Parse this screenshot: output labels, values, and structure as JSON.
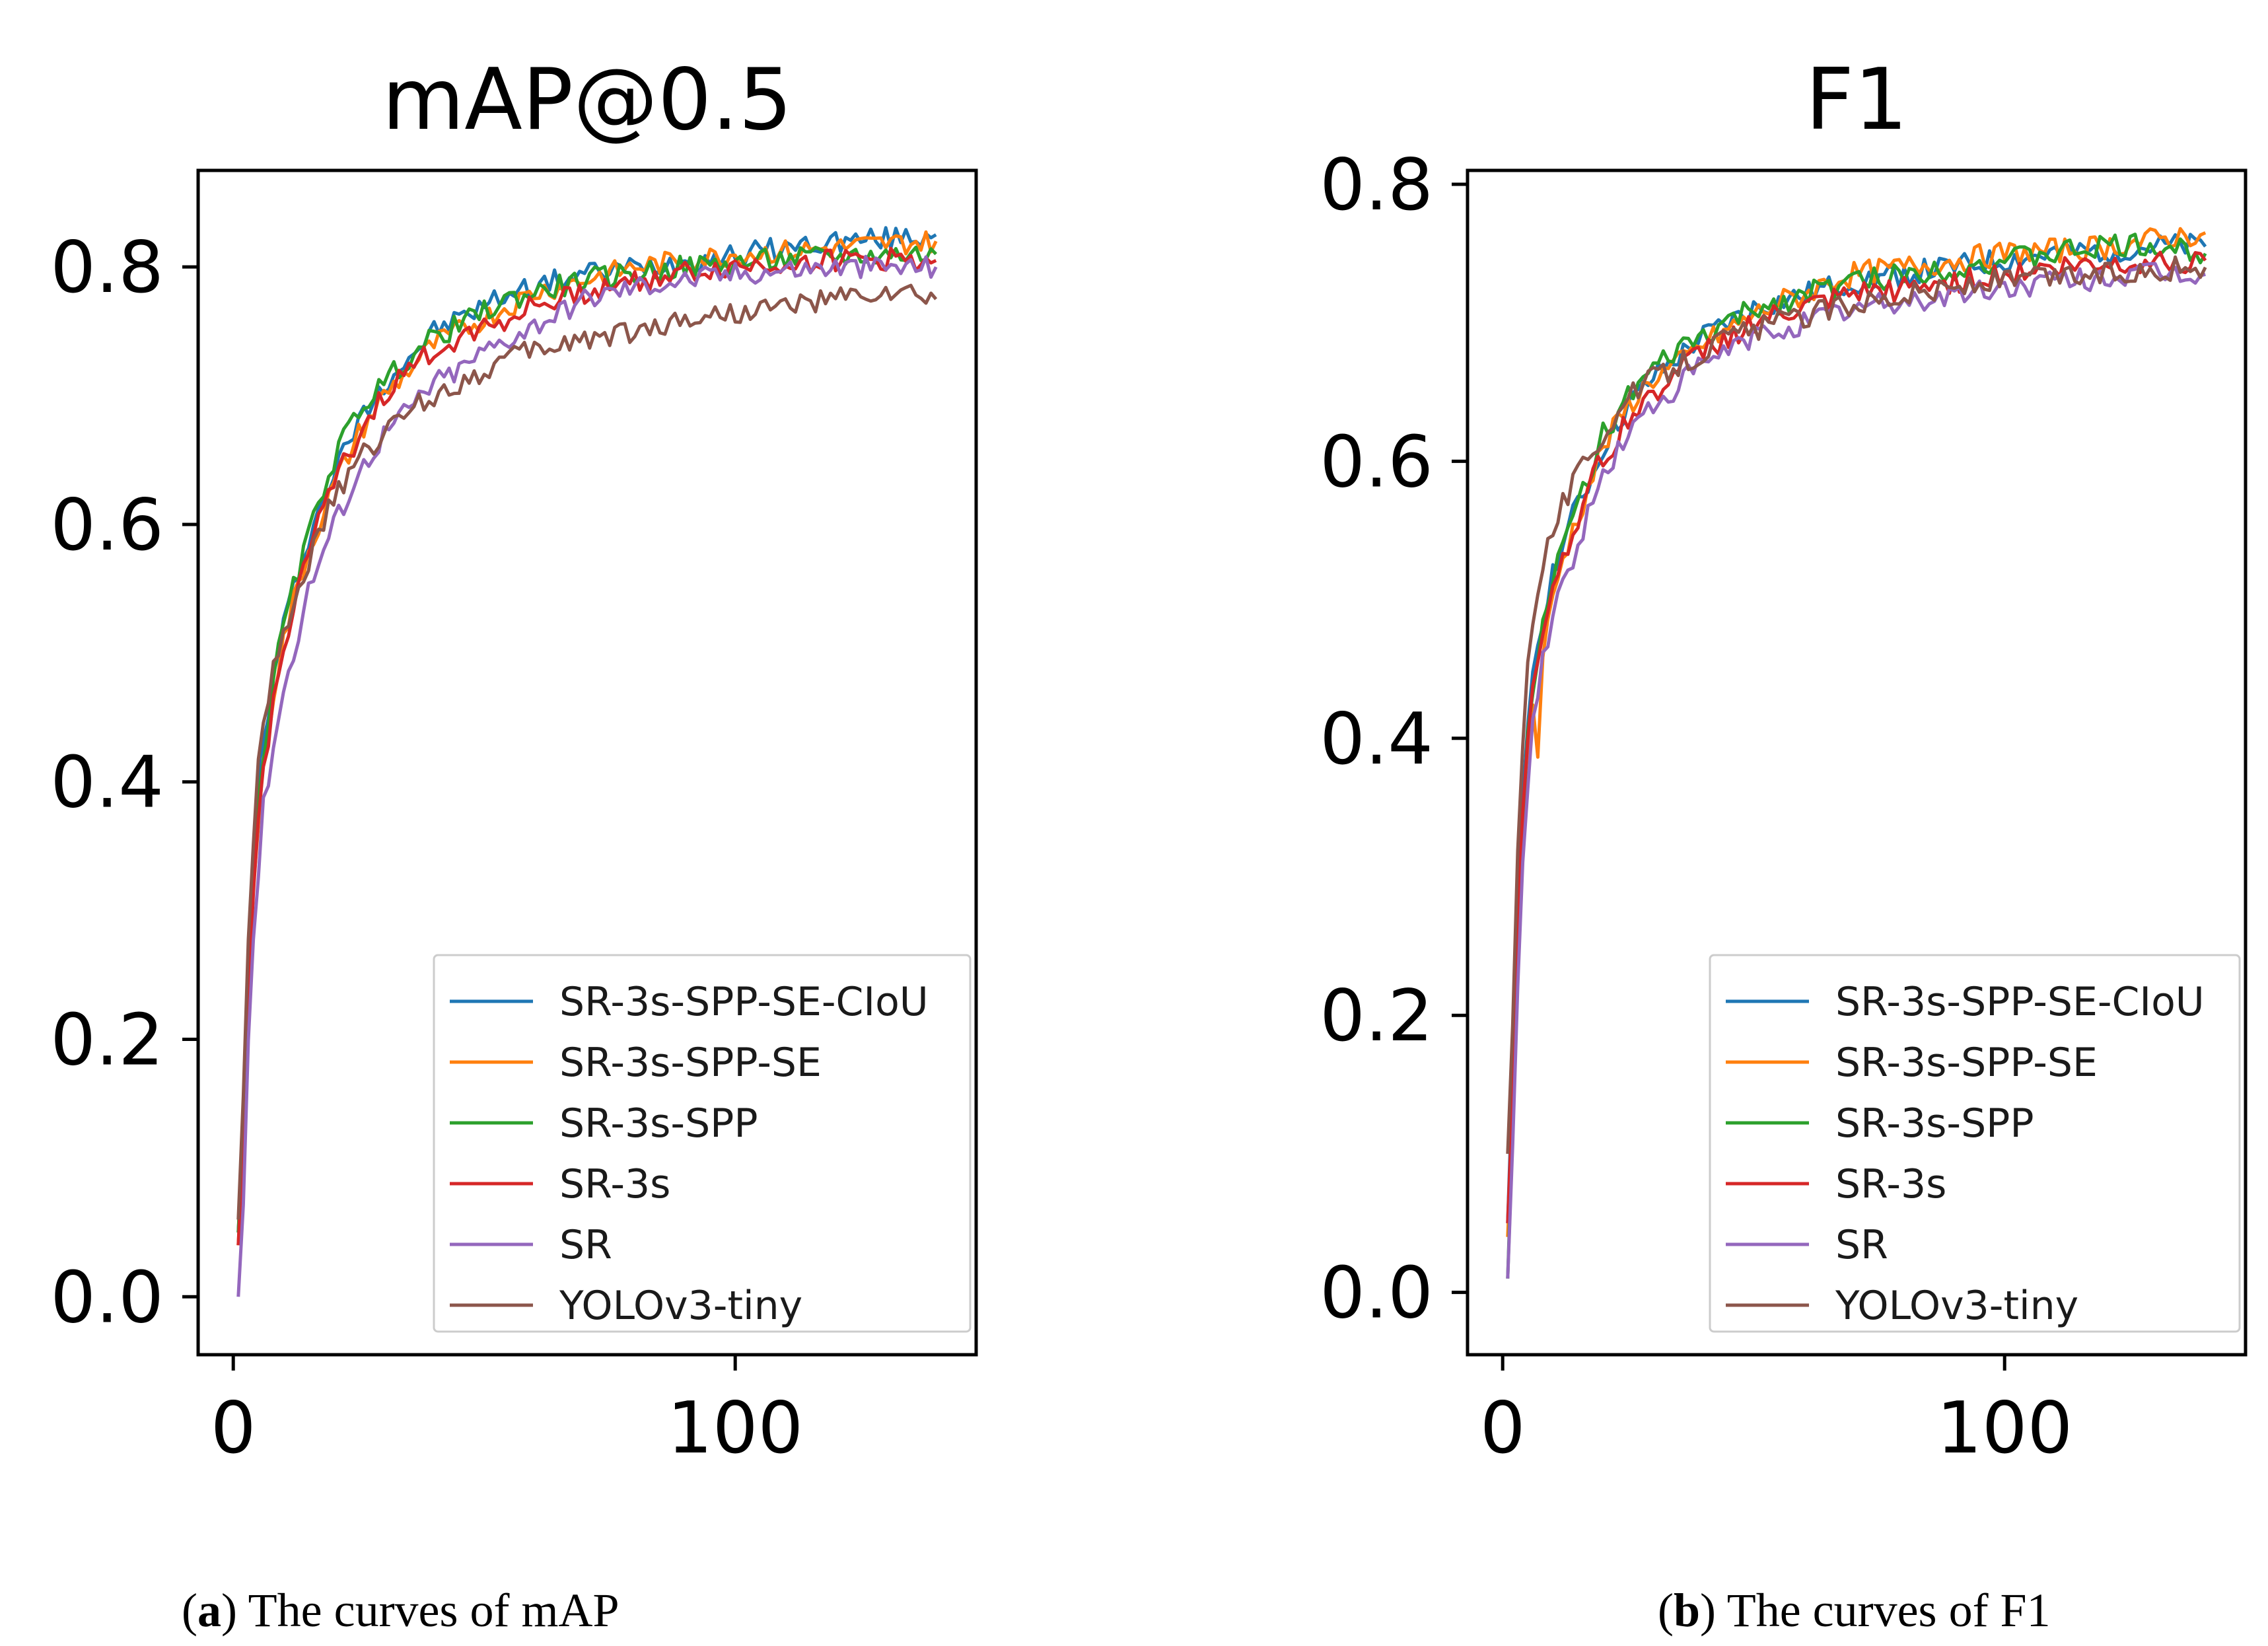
{
  "chart_data": [
    {
      "type": "line",
      "title": "mAP@0.5",
      "xlim": [
        -7,
        148
      ],
      "ylim": [
        -0.045,
        0.875
      ],
      "xticks": [
        0,
        100
      ],
      "xtick_labels": [
        "0",
        "100"
      ],
      "yticks": [
        0.0,
        0.2,
        0.4,
        0.6,
        0.8
      ],
      "ytick_labels": [
        "0.0",
        "0.2",
        "0.4",
        "0.6",
        "0.8"
      ],
      "legend_position": "lower-right",
      "series": [
        {
          "name": "SR-3s-SPP-SE-CIoU",
          "color": "#1f77b4",
          "x": [
            1,
            2,
            3,
            4,
            5,
            6,
            8,
            10,
            12,
            15,
            18,
            20,
            25,
            30,
            35,
            40,
            45,
            50,
            55,
            60,
            65,
            70,
            80,
            90,
            100,
            110,
            120,
            130,
            140
          ],
          "y": [
            0.05,
            0.14,
            0.26,
            0.34,
            0.39,
            0.43,
            0.48,
            0.52,
            0.55,
            0.59,
            0.62,
            0.64,
            0.68,
            0.71,
            0.73,
            0.75,
            0.76,
            0.77,
            0.78,
            0.785,
            0.79,
            0.795,
            0.8,
            0.805,
            0.81,
            0.815,
            0.82,
            0.822,
            0.825
          ]
        },
        {
          "name": "SR-3s-SPP-SE",
          "color": "#ff7f0e",
          "x": [
            1,
            2,
            3,
            4,
            5,
            6,
            8,
            10,
            12,
            15,
            18,
            20,
            25,
            30,
            35,
            40,
            45,
            50,
            55,
            60,
            65,
            70,
            80,
            90,
            100,
            110,
            120,
            130,
            140
          ],
          "y": [
            0.04,
            0.12,
            0.24,
            0.32,
            0.37,
            0.41,
            0.47,
            0.51,
            0.54,
            0.58,
            0.61,
            0.63,
            0.67,
            0.7,
            0.72,
            0.74,
            0.75,
            0.76,
            0.77,
            0.78,
            0.785,
            0.79,
            0.8,
            0.805,
            0.81,
            0.812,
            0.815,
            0.818,
            0.82
          ]
        },
        {
          "name": "SR-3s-SPP",
          "color": "#2ca02c",
          "x": [
            1,
            2,
            3,
            4,
            5,
            6,
            8,
            10,
            12,
            15,
            18,
            20,
            25,
            30,
            35,
            40,
            45,
            50,
            55,
            60,
            65,
            70,
            80,
            90,
            100,
            110,
            120,
            130,
            140
          ],
          "y": [
            0.05,
            0.13,
            0.25,
            0.33,
            0.38,
            0.42,
            0.48,
            0.52,
            0.55,
            0.59,
            0.63,
            0.65,
            0.69,
            0.71,
            0.73,
            0.745,
            0.755,
            0.765,
            0.775,
            0.78,
            0.785,
            0.79,
            0.795,
            0.8,
            0.803,
            0.806,
            0.808,
            0.81,
            0.81
          ]
        },
        {
          "name": "SR-3s",
          "color": "#d62728",
          "x": [
            1,
            2,
            3,
            4,
            5,
            6,
            8,
            10,
            12,
            15,
            18,
            20,
            25,
            30,
            35,
            40,
            45,
            50,
            55,
            60,
            65,
            70,
            80,
            90,
            100,
            110,
            120,
            130,
            140
          ],
          "y": [
            0.04,
            0.12,
            0.23,
            0.31,
            0.37,
            0.41,
            0.46,
            0.5,
            0.54,
            0.58,
            0.61,
            0.63,
            0.67,
            0.7,
            0.72,
            0.735,
            0.745,
            0.755,
            0.76,
            0.77,
            0.775,
            0.78,
            0.79,
            0.795,
            0.8,
            0.803,
            0.805,
            0.806,
            0.805
          ]
        },
        {
          "name": "SR",
          "color": "#9467bd",
          "x": [
            1,
            2,
            3,
            4,
            5,
            6,
            8,
            10,
            12,
            15,
            18,
            20,
            25,
            30,
            35,
            40,
            45,
            50,
            55,
            60,
            65,
            70,
            80,
            90,
            100,
            110,
            120,
            130,
            140
          ],
          "y": [
            0.0,
            0.08,
            0.2,
            0.28,
            0.33,
            0.38,
            0.43,
            0.47,
            0.5,
            0.55,
            0.58,
            0.6,
            0.64,
            0.67,
            0.69,
            0.71,
            0.72,
            0.735,
            0.745,
            0.755,
            0.765,
            0.775,
            0.785,
            0.79,
            0.795,
            0.798,
            0.8,
            0.8,
            0.8
          ]
        },
        {
          "name": "YOLOv3-tiny",
          "color": "#8c564b",
          "x": [
            1,
            2,
            3,
            4,
            5,
            6,
            8,
            10,
            12,
            15,
            18,
            20,
            25,
            30,
            35,
            40,
            45,
            50,
            55,
            60,
            65,
            70,
            80,
            90,
            100,
            110,
            120,
            130,
            140
          ],
          "y": [
            0.06,
            0.16,
            0.28,
            0.36,
            0.41,
            0.45,
            0.49,
            0.52,
            0.54,
            0.57,
            0.6,
            0.62,
            0.65,
            0.67,
            0.69,
            0.7,
            0.71,
            0.72,
            0.73,
            0.735,
            0.74,
            0.745,
            0.75,
            0.76,
            0.765,
            0.77,
            0.775,
            0.78,
            0.775
          ]
        }
      ]
    },
    {
      "type": "line",
      "title": "F1",
      "xlim": [
        -7,
        148
      ],
      "ylim": [
        -0.045,
        0.81
      ],
      "xticks": [
        0,
        100
      ],
      "xtick_labels": [
        "0",
        "100"
      ],
      "yticks": [
        0.0,
        0.2,
        0.4,
        0.6,
        0.8
      ],
      "ytick_labels": [
        "0.0",
        "0.2",
        "0.4",
        "0.6",
        "0.8"
      ],
      "legend_position": "lower-right",
      "series": [
        {
          "name": "SR-3s-SPP-SE-CIoU",
          "color": "#1f77b4",
          "x": [
            1,
            2,
            3,
            4,
            5,
            6,
            8,
            10,
            12,
            15,
            18,
            20,
            25,
            30,
            35,
            40,
            45,
            50,
            55,
            60,
            65,
            70,
            80,
            90,
            100,
            110,
            120,
            130,
            140
          ],
          "y": [
            0.05,
            0.15,
            0.27,
            0.35,
            0.41,
            0.45,
            0.49,
            0.52,
            0.54,
            0.57,
            0.59,
            0.61,
            0.64,
            0.66,
            0.675,
            0.69,
            0.7,
            0.71,
            0.715,
            0.72,
            0.725,
            0.73,
            0.735,
            0.74,
            0.745,
            0.75,
            0.752,
            0.755,
            0.755
          ]
        },
        {
          "name": "SR-3s-SPP-SE",
          "color": "#ff7f0e",
          "x": [
            1,
            2,
            3,
            4,
            5,
            6,
            7,
            8,
            10,
            12,
            15,
            18,
            20,
            25,
            30,
            35,
            40,
            45,
            50,
            55,
            60,
            65,
            70,
            80,
            90,
            100,
            110,
            120,
            130,
            140
          ],
          "y": [
            0.04,
            0.13,
            0.25,
            0.33,
            0.39,
            0.42,
            0.39,
            0.46,
            0.5,
            0.53,
            0.56,
            0.59,
            0.61,
            0.64,
            0.66,
            0.67,
            0.685,
            0.695,
            0.705,
            0.715,
            0.72,
            0.73,
            0.735,
            0.74,
            0.745,
            0.75,
            0.752,
            0.755,
            0.76,
            0.765
          ]
        },
        {
          "name": "SR-3s-SPP",
          "color": "#2ca02c",
          "x": [
            1,
            2,
            3,
            4,
            5,
            6,
            8,
            10,
            12,
            15,
            18,
            20,
            25,
            30,
            35,
            40,
            45,
            50,
            55,
            60,
            65,
            70,
            80,
            90,
            100,
            110,
            120,
            130,
            140
          ],
          "y": [
            0.01,
            0.12,
            0.25,
            0.34,
            0.4,
            0.44,
            0.48,
            0.51,
            0.54,
            0.57,
            0.6,
            0.62,
            0.645,
            0.665,
            0.68,
            0.69,
            0.7,
            0.71,
            0.715,
            0.72,
            0.725,
            0.73,
            0.735,
            0.74,
            0.745,
            0.75,
            0.755,
            0.755,
            0.75
          ]
        },
        {
          "name": "SR-3s",
          "color": "#d62728",
          "x": [
            1,
            2,
            3,
            4,
            5,
            6,
            8,
            10,
            12,
            15,
            18,
            20,
            25,
            30,
            35,
            40,
            45,
            50,
            55,
            60,
            65,
            70,
            80,
            90,
            100,
            110,
            120,
            130,
            140
          ],
          "y": [
            0.05,
            0.14,
            0.26,
            0.34,
            0.4,
            0.44,
            0.48,
            0.51,
            0.53,
            0.56,
            0.59,
            0.6,
            0.63,
            0.65,
            0.665,
            0.68,
            0.69,
            0.7,
            0.705,
            0.71,
            0.715,
            0.72,
            0.725,
            0.73,
            0.735,
            0.74,
            0.742,
            0.745,
            0.745
          ]
        },
        {
          "name": "SR",
          "color": "#9467bd",
          "x": [
            1,
            2,
            3,
            4,
            5,
            6,
            8,
            10,
            12,
            15,
            18,
            20,
            25,
            30,
            35,
            40,
            45,
            50,
            55,
            60,
            65,
            70,
            80,
            90,
            100,
            110,
            120,
            130,
            140
          ],
          "y": [
            0.01,
            0.1,
            0.22,
            0.31,
            0.37,
            0.41,
            0.46,
            0.49,
            0.51,
            0.54,
            0.57,
            0.59,
            0.62,
            0.64,
            0.655,
            0.67,
            0.68,
            0.69,
            0.695,
            0.7,
            0.705,
            0.71,
            0.715,
            0.72,
            0.725,
            0.73,
            0.733,
            0.735,
            0.735
          ]
        },
        {
          "name": "YOLOv3-tiny",
          "color": "#8c564b",
          "x": [
            1,
            2,
            3,
            4,
            5,
            6,
            8,
            10,
            12,
            15,
            18,
            20,
            25,
            30,
            35,
            40,
            45,
            50,
            55,
            60,
            65,
            70,
            80,
            90,
            100,
            110,
            120,
            130,
            140
          ],
          "y": [
            0.1,
            0.2,
            0.32,
            0.4,
            0.45,
            0.49,
            0.53,
            0.55,
            0.57,
            0.59,
            0.61,
            0.62,
            0.645,
            0.66,
            0.67,
            0.68,
            0.69,
            0.695,
            0.7,
            0.705,
            0.71,
            0.715,
            0.72,
            0.725,
            0.73,
            0.733,
            0.735,
            0.738,
            0.74
          ]
        }
      ]
    }
  ],
  "captions": [
    {
      "label": "a",
      "text": " The curves of mAP"
    },
    {
      "label": "b",
      "text": " The curves of F1"
    }
  ]
}
